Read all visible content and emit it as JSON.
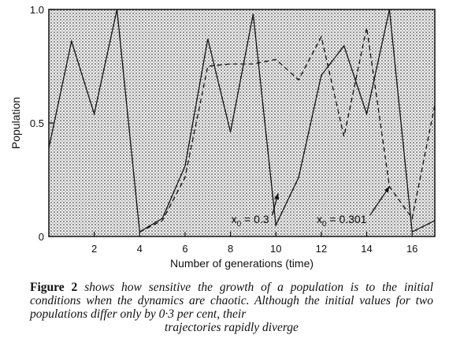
{
  "chart_data": {
    "type": "line",
    "title": "",
    "xlabel": "Number of generations (time)",
    "ylabel": "Population",
    "xlim": [
      0,
      17
    ],
    "ylim": [
      0,
      1
    ],
    "x_ticks": [
      2,
      4,
      6,
      8,
      10,
      12,
      14,
      16
    ],
    "y_ticks": [
      0,
      0.5,
      1
    ],
    "y_tick_labels": [
      "0",
      "0.5",
      "1.0"
    ],
    "grid": false,
    "legend": "none",
    "series": [
      {
        "name": "x0 = 0.3",
        "line_style": "solid",
        "x": [
          0,
          1,
          2,
          3,
          4,
          5,
          6,
          7,
          8,
          9,
          10,
          11,
          12,
          13,
          14,
          15,
          16,
          17
        ],
        "y": [
          0.39,
          0.86,
          0.54,
          1.0,
          0.02,
          0.08,
          0.31,
          0.87,
          0.46,
          0.98,
          0.05,
          0.26,
          0.71,
          0.84,
          0.54,
          1.0,
          0.02,
          0.07
        ]
      },
      {
        "name": "x0 = 0.301",
        "line_style": "dashed",
        "x": [
          4,
          5,
          6,
          7,
          8,
          9,
          10,
          11,
          12,
          13,
          14,
          15,
          16,
          17
        ],
        "y": [
          0.02,
          0.07,
          0.26,
          0.75,
          0.76,
          0.76,
          0.78,
          0.69,
          0.88,
          0.44,
          0.92,
          0.22,
          0.08,
          0.58
        ]
      }
    ],
    "annotations": [
      {
        "base": "x",
        "sub": "0",
        "value": " = 0.3",
        "x": 9.7,
        "y": 0.1,
        "arrow_to": [
          10.1,
          0.19
        ]
      },
      {
        "base": "x",
        "sub": "0",
        "value": " = 0.301",
        "x": 14.0,
        "y": 0.1,
        "arrow_to": [
          15.0,
          0.22
        ]
      }
    ],
    "colors": {
      "line": "#111111",
      "background_texture": "#cfcfcf"
    }
  },
  "caption": {
    "label": "Figure 2",
    "text": " shows how sensitive the growth of a population is to the initial conditions when the dynamics are chaotic. Although the initial values for two populations differ only by 0·3 per cent, their",
    "last_line": "trajectories rapidly diverge"
  }
}
